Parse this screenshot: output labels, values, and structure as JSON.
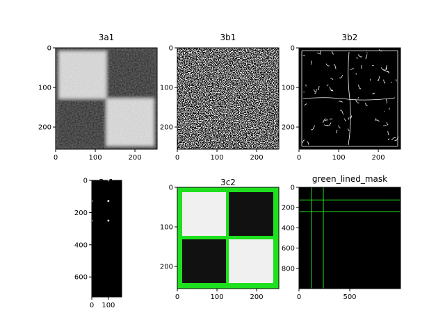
{
  "chart_data": [
    {
      "type": "image",
      "title": "3a1",
      "image": "noisy-checkerboard",
      "xlim": [
        0,
        256
      ],
      "ylim": [
        256,
        0
      ],
      "xticks": [
        0,
        100,
        200
      ],
      "yticks": [
        0,
        100,
        200
      ],
      "xtick_labels": [
        "0",
        "100",
        "200"
      ],
      "ytick_labels": [
        "0",
        "100",
        "200"
      ]
    },
    {
      "type": "image",
      "title": "3b1",
      "image": "dense-noise-edges",
      "xlim": [
        0,
        256
      ],
      "ylim": [
        256,
        0
      ],
      "xticks": [
        0,
        100,
        200
      ],
      "yticks": [
        0,
        100,
        200
      ],
      "xtick_labels": [
        "0",
        "100",
        "200"
      ],
      "ytick_labels": [
        "0",
        "100",
        "200"
      ]
    },
    {
      "type": "image",
      "title": "3b2",
      "image": "sparse-edges",
      "xlim": [
        0,
        256
      ],
      "ylim": [
        256,
        0
      ],
      "xticks": [
        0,
        100,
        200
      ],
      "yticks": [
        0,
        100,
        200
      ],
      "xtick_labels": [
        "0",
        "100",
        "200"
      ],
      "ytick_labels": [
        "0",
        "100",
        "200"
      ]
    },
    {
      "type": "image",
      "title": "3c1",
      "image": "hough-accumulator",
      "xlim": [
        0,
        180
      ],
      "ylim": [
        724,
        0
      ],
      "xticks": [
        0,
        100
      ],
      "yticks": [
        0,
        200,
        400,
        600
      ],
      "xtick_labels": [
        "0",
        "100"
      ],
      "ytick_labels": [
        "0",
        "200",
        "400",
        "600"
      ],
      "points": [
        [
          100,
          0
        ],
        [
          0,
          128
        ],
        [
          100,
          128
        ],
        [
          0,
          250
        ],
        [
          100,
          250
        ]
      ]
    },
    {
      "type": "image",
      "title": "3c2",
      "image": "checkerboard-green-lines",
      "xlim": [
        0,
        256
      ],
      "ylim": [
        256,
        0
      ],
      "xticks": [
        0,
        100,
        200
      ],
      "yticks": [
        0,
        100,
        200
      ],
      "xtick_labels": [
        "0",
        "100",
        "200"
      ],
      "ytick_labels": [
        "0",
        "100",
        "200"
      ]
    },
    {
      "type": "image",
      "title": "green_lined_mask",
      "image": "green-line-mask",
      "xlim": [
        0,
        1000
      ],
      "ylim": [
        1000,
        0
      ],
      "xticks": [
        0,
        500
      ],
      "yticks": [
        0,
        200,
        400,
        600,
        800
      ],
      "xtick_labels": [
        "0",
        "500"
      ],
      "ytick_labels": [
        "0",
        "200",
        "400",
        "600",
        "800"
      ],
      "vlines": [
        125,
        240
      ],
      "hlines": [
        125,
        240
      ]
    }
  ],
  "colors": {
    "line_green": "#1ee01e",
    "dark_cell": "#111111",
    "light_cell": "#f0f0f0"
  }
}
